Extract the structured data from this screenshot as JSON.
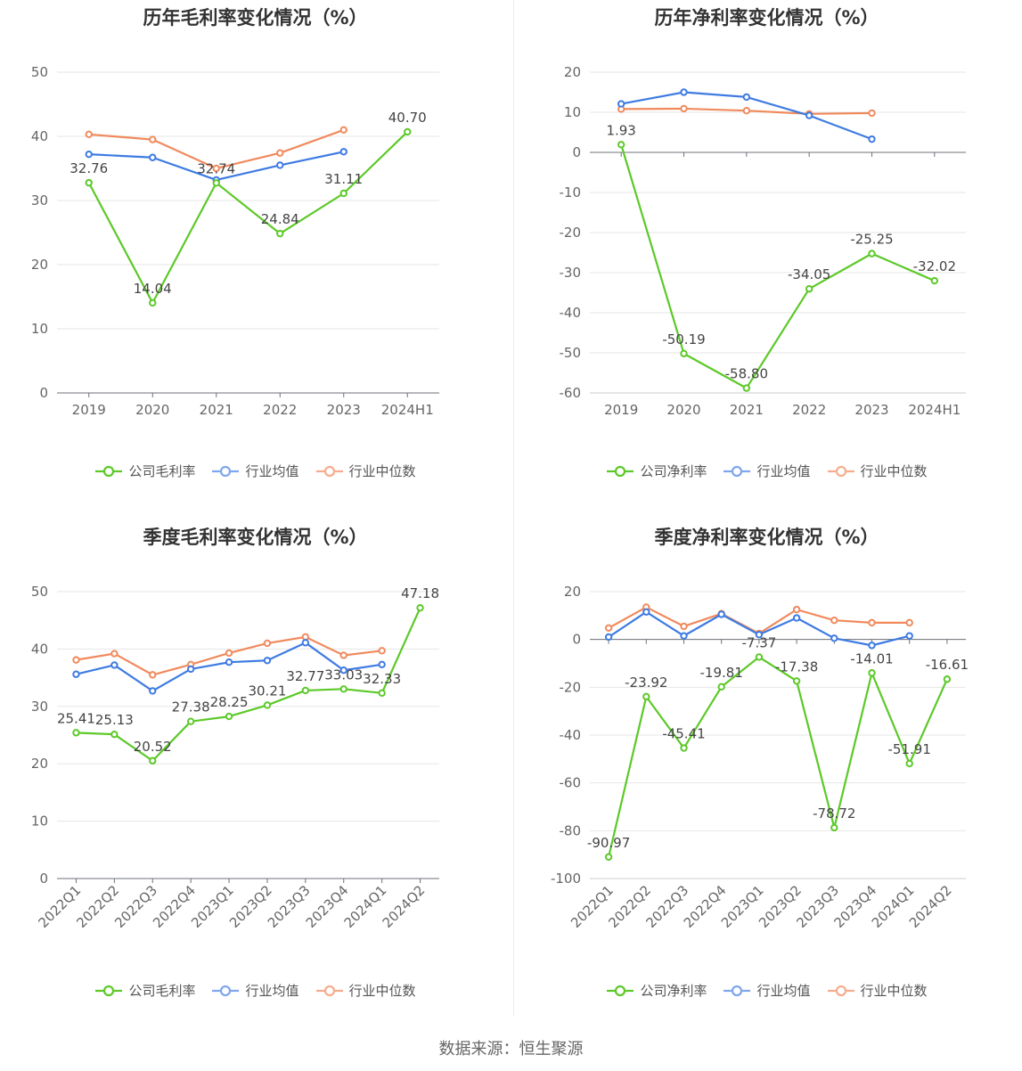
{
  "source": "数据来源：恒生聚源",
  "colors": {
    "company": "#5cc928",
    "avg": "#3e7be2",
    "median": "#f08a5d"
  },
  "chart_data": [
    {
      "type": "line",
      "title": "历年毛利率变化情况（%）",
      "categories": [
        "2019",
        "2020",
        "2021",
        "2022",
        "2023",
        "2024H1"
      ],
      "ylim": [
        0,
        50
      ],
      "yticks": [
        0,
        10,
        20,
        30,
        40,
        50
      ],
      "rotate_x": false,
      "legend": [
        "公司毛利率",
        "行业均值",
        "行业中位数"
      ],
      "series": [
        {
          "name": "公司毛利率",
          "values": [
            32.76,
            14.04,
            32.74,
            24.84,
            31.11,
            40.7
          ],
          "labels": [
            "32.76",
            "14.04",
            "32.74",
            "24.84",
            "31.11",
            "40.70"
          ]
        },
        {
          "name": "行业均值",
          "values": [
            37.2,
            36.7,
            33.2,
            35.5,
            37.6,
            null
          ]
        },
        {
          "name": "行业中位数",
          "values": [
            40.3,
            39.5,
            35.0,
            37.4,
            41.0,
            null
          ]
        }
      ]
    },
    {
      "type": "line",
      "title": "历年净利率变化情况（%）",
      "categories": [
        "2019",
        "2020",
        "2021",
        "2022",
        "2023",
        "2024H1"
      ],
      "ylim": [
        -60,
        20
      ],
      "yticks": [
        -60,
        -50,
        -40,
        -30,
        -20,
        -10,
        0,
        10,
        20
      ],
      "rotate_x": false,
      "legend": [
        "公司净利率",
        "行业均值",
        "行业中位数"
      ],
      "series": [
        {
          "name": "公司净利率",
          "values": [
            1.93,
            -50.19,
            -58.8,
            -34.05,
            -25.25,
            -32.02
          ],
          "labels": [
            "1.93",
            "-50.19",
            "-58.80",
            "-34.05",
            "-25.25",
            "-32.02"
          ]
        },
        {
          "name": "行业均值",
          "values": [
            12.1,
            15.0,
            13.8,
            9.2,
            3.3,
            null
          ]
        },
        {
          "name": "行业中位数",
          "values": [
            10.8,
            10.9,
            10.4,
            9.6,
            9.8,
            null
          ]
        }
      ]
    },
    {
      "type": "line",
      "title": "季度毛利率变化情况（%）",
      "categories": [
        "2022Q1",
        "2022Q2",
        "2022Q3",
        "2022Q4",
        "2023Q1",
        "2023Q2",
        "2023Q3",
        "2023Q4",
        "2024Q1",
        "2024Q2"
      ],
      "ylim": [
        0,
        50
      ],
      "yticks": [
        0,
        10,
        20,
        30,
        40,
        50
      ],
      "rotate_x": true,
      "legend": [
        "公司毛利率",
        "行业均值",
        "行业中位数"
      ],
      "series": [
        {
          "name": "公司毛利率",
          "values": [
            25.41,
            25.13,
            20.52,
            27.38,
            28.25,
            30.21,
            32.77,
            33.03,
            32.33,
            47.18
          ],
          "labels": [
            "25.41",
            "25.13",
            "20.52",
            "27.38",
            "28.25",
            "30.21",
            "32.77",
            "33.03",
            "32.33",
            "47.18"
          ]
        },
        {
          "name": "行业均值",
          "values": [
            35.6,
            37.2,
            32.7,
            36.5,
            37.7,
            38.0,
            41.1,
            36.3,
            37.3,
            null
          ]
        },
        {
          "name": "行业中位数",
          "values": [
            38.1,
            39.2,
            35.5,
            37.3,
            39.3,
            41.0,
            42.1,
            38.9,
            39.7,
            null
          ]
        }
      ]
    },
    {
      "type": "line",
      "title": "季度净利率变化情况（%）",
      "categories": [
        "2022Q1",
        "2022Q2",
        "2022Q3",
        "2022Q4",
        "2023Q1",
        "2023Q2",
        "2023Q3",
        "2023Q4",
        "2024Q1",
        "2024Q2"
      ],
      "ylim": [
        -100,
        20
      ],
      "yticks": [
        -100,
        -80,
        -60,
        -40,
        -20,
        0,
        20
      ],
      "rotate_x": true,
      "legend": [
        "公司净利率",
        "行业均值",
        "行业中位数"
      ],
      "series": [
        {
          "name": "公司净利率",
          "values": [
            -90.97,
            -23.92,
            -45.41,
            -19.81,
            -7.37,
            -17.38,
            -78.72,
            -14.01,
            -51.91,
            -16.61
          ],
          "labels": [
            "-90.97",
            "-23.92",
            "-45.41",
            "-19.81",
            "-7.37",
            "-17.38",
            "-78.72",
            "-14.01",
            "-51.91",
            "-16.61"
          ]
        },
        {
          "name": "行业均值",
          "values": [
            1.0,
            11.5,
            1.5,
            10.5,
            2.0,
            9.0,
            0.5,
            -2.5,
            1.5,
            null
          ]
        },
        {
          "name": "行业中位数",
          "values": [
            4.8,
            13.5,
            5.5,
            10.8,
            2.5,
            12.5,
            8.0,
            7.0,
            7.0,
            null
          ]
        }
      ]
    }
  ]
}
